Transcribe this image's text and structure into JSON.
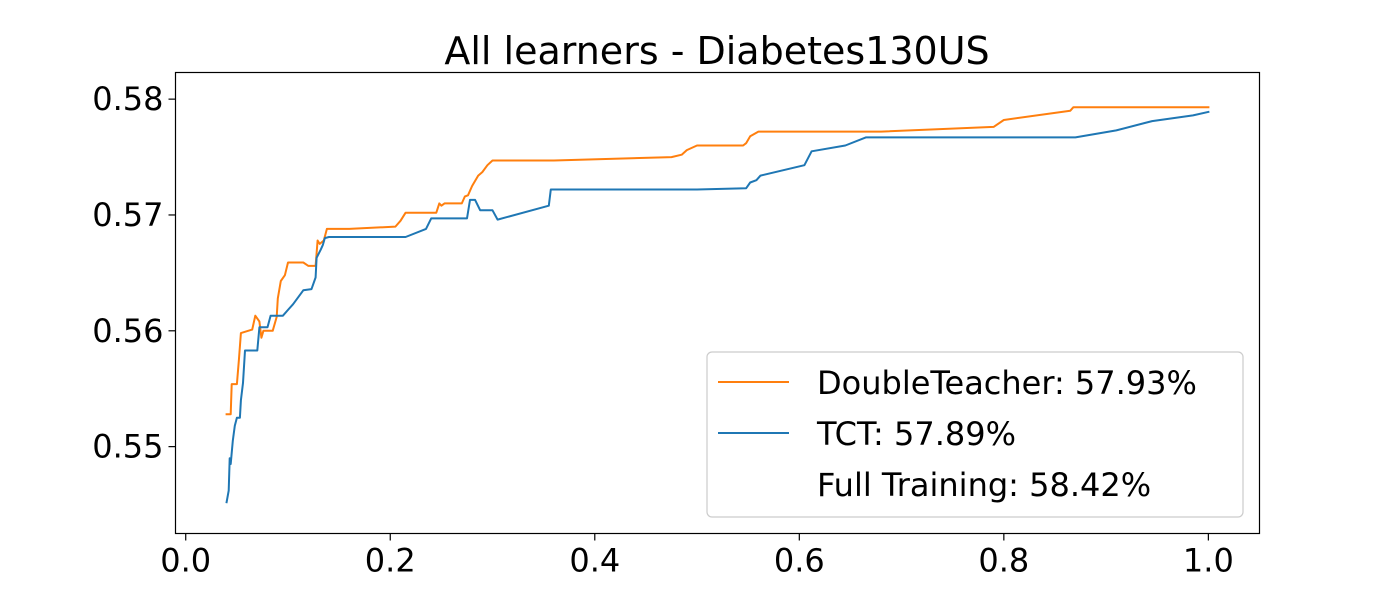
{
  "chart_data": {
    "type": "line",
    "title": "All learners - Diabetes130US",
    "xlabel": "",
    "ylabel": "",
    "xlim": [
      -0.01,
      1.05
    ],
    "ylim": [
      0.5425,
      0.5823
    ],
    "xticks": [
      0.0,
      0.2,
      0.4,
      0.6,
      0.8,
      1.0
    ],
    "xtick_labels": [
      "0.0",
      "0.2",
      "0.4",
      "0.6",
      "0.8",
      "1.0"
    ],
    "yticks": [
      0.55,
      0.56,
      0.57,
      0.58
    ],
    "ytick_labels": [
      "0.55",
      "0.56",
      "0.57",
      "0.58"
    ],
    "grid": false,
    "legend_position": "bottom-right",
    "legend": [
      {
        "label": "DoubleTeacher: 57.93%",
        "color": "#ff7f0e",
        "has_line": true
      },
      {
        "label": "TCT: 57.89%",
        "color": "#1f77b4",
        "has_line": true
      },
      {
        "label": "Full Training: 58.42%",
        "color": "#2ca02c",
        "has_line": false
      }
    ],
    "series": [
      {
        "name": "DoubleTeacher",
        "color": "#ff7f0e",
        "points": [
          [
            0.04,
            0.5528
          ],
          [
            0.044,
            0.5528
          ],
          [
            0.045,
            0.5554
          ],
          [
            0.05,
            0.5554
          ],
          [
            0.052,
            0.5575
          ],
          [
            0.054,
            0.5598
          ],
          [
            0.065,
            0.5601
          ],
          [
            0.068,
            0.5613
          ],
          [
            0.072,
            0.5608
          ],
          [
            0.074,
            0.5594
          ],
          [
            0.076,
            0.56
          ],
          [
            0.085,
            0.56
          ],
          [
            0.089,
            0.5612
          ],
          [
            0.09,
            0.5628
          ],
          [
            0.093,
            0.5643
          ],
          [
            0.097,
            0.5648
          ],
          [
            0.1,
            0.5659
          ],
          [
            0.115,
            0.5659
          ],
          [
            0.12,
            0.5656
          ],
          [
            0.127,
            0.5656
          ],
          [
            0.129,
            0.5678
          ],
          [
            0.131,
            0.5675
          ],
          [
            0.135,
            0.5678
          ],
          [
            0.138,
            0.5688
          ],
          [
            0.16,
            0.5688
          ],
          [
            0.205,
            0.569
          ],
          [
            0.21,
            0.5695
          ],
          [
            0.215,
            0.5702
          ],
          [
            0.245,
            0.5702
          ],
          [
            0.248,
            0.571
          ],
          [
            0.25,
            0.5708
          ],
          [
            0.253,
            0.571
          ],
          [
            0.27,
            0.571
          ],
          [
            0.273,
            0.5716
          ],
          [
            0.276,
            0.5717
          ],
          [
            0.28,
            0.5725
          ],
          [
            0.286,
            0.5734
          ],
          [
            0.29,
            0.5737
          ],
          [
            0.295,
            0.5743
          ],
          [
            0.3,
            0.5747
          ],
          [
            0.36,
            0.5747
          ],
          [
            0.475,
            0.575
          ],
          [
            0.485,
            0.5752
          ],
          [
            0.49,
            0.5756
          ],
          [
            0.5,
            0.576
          ],
          [
            0.545,
            0.576
          ],
          [
            0.548,
            0.5762
          ],
          [
            0.552,
            0.5768
          ],
          [
            0.56,
            0.5772
          ],
          [
            0.6,
            0.5772
          ],
          [
            0.68,
            0.5772
          ],
          [
            0.79,
            0.5776
          ],
          [
            0.8,
            0.5782
          ],
          [
            0.865,
            0.579
          ],
          [
            0.868,
            0.5793
          ],
          [
            1.0,
            0.5793
          ]
        ]
      },
      {
        "name": "TCT",
        "color": "#1f77b4",
        "points": [
          [
            0.04,
            0.5452
          ],
          [
            0.042,
            0.5462
          ],
          [
            0.043,
            0.549
          ],
          [
            0.044,
            0.5485
          ],
          [
            0.046,
            0.5505
          ],
          [
            0.048,
            0.5518
          ],
          [
            0.05,
            0.5525
          ],
          [
            0.053,
            0.5525
          ],
          [
            0.054,
            0.554
          ],
          [
            0.056,
            0.5555
          ],
          [
            0.058,
            0.5583
          ],
          [
            0.07,
            0.5583
          ],
          [
            0.072,
            0.5603
          ],
          [
            0.08,
            0.5603
          ],
          [
            0.083,
            0.5613
          ],
          [
            0.095,
            0.5613
          ],
          [
            0.1,
            0.5618
          ],
          [
            0.105,
            0.5623
          ],
          [
            0.115,
            0.5635
          ],
          [
            0.123,
            0.5636
          ],
          [
            0.127,
            0.5646
          ],
          [
            0.128,
            0.5663
          ],
          [
            0.132,
            0.567
          ],
          [
            0.134,
            0.5674
          ],
          [
            0.136,
            0.568
          ],
          [
            0.14,
            0.5681
          ],
          [
            0.215,
            0.5681
          ],
          [
            0.235,
            0.5688
          ],
          [
            0.24,
            0.5697
          ],
          [
            0.275,
            0.5697
          ],
          [
            0.278,
            0.5713
          ],
          [
            0.283,
            0.5713
          ],
          [
            0.288,
            0.5704
          ],
          [
            0.3,
            0.5704
          ],
          [
            0.305,
            0.5696
          ],
          [
            0.355,
            0.5708
          ],
          [
            0.357,
            0.5722
          ],
          [
            0.42,
            0.5722
          ],
          [
            0.5,
            0.5722
          ],
          [
            0.548,
            0.5723
          ],
          [
            0.552,
            0.5728
          ],
          [
            0.558,
            0.573
          ],
          [
            0.562,
            0.5734
          ],
          [
            0.605,
            0.5743
          ],
          [
            0.612,
            0.5755
          ],
          [
            0.645,
            0.576
          ],
          [
            0.665,
            0.5767
          ],
          [
            0.7,
            0.5767
          ],
          [
            0.87,
            0.5767
          ],
          [
            0.91,
            0.5773
          ],
          [
            0.945,
            0.5781
          ],
          [
            0.985,
            0.5786
          ],
          [
            1.0,
            0.5789
          ]
        ]
      }
    ]
  }
}
